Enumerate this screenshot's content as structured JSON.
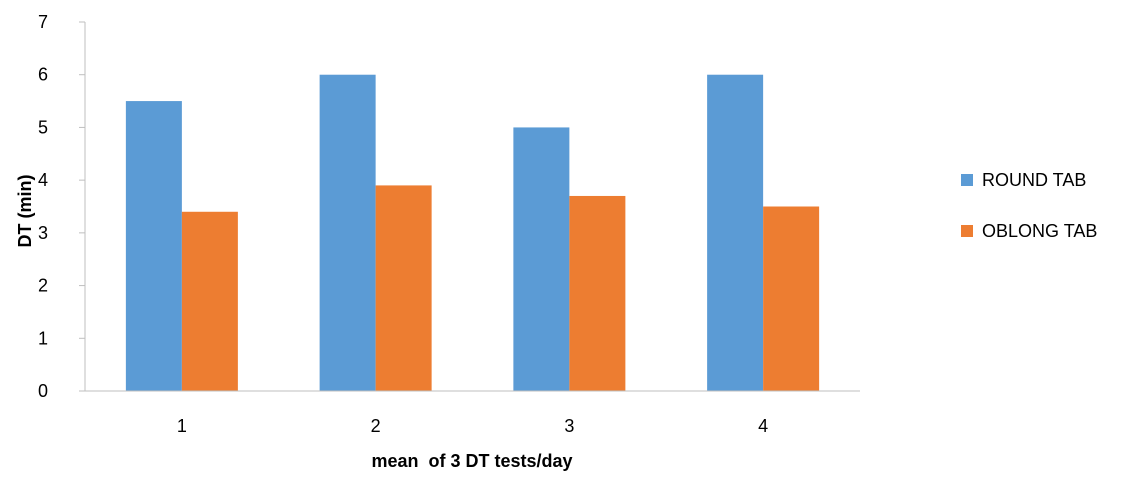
{
  "chart_data": {
    "type": "bar",
    "title": "",
    "xlabel": "mean  of 3 DT tests/day",
    "ylabel": "DT (min)",
    "categories": [
      "1",
      "2",
      "3",
      "4"
    ],
    "series": [
      {
        "name": "ROUND TAB",
        "values": [
          5.5,
          6.0,
          5.0,
          6.0
        ],
        "color": "#5B9BD5"
      },
      {
        "name": "OBLONG TAB",
        "values": [
          3.4,
          3.9,
          3.7,
          3.5
        ],
        "color": "#ED7D31"
      }
    ],
    "ylim": [
      0,
      7
    ],
    "yticks": [
      "0",
      "1",
      "2",
      "3",
      "4",
      "5",
      "6",
      "7"
    ],
    "grid": false,
    "legend_position": "right"
  }
}
